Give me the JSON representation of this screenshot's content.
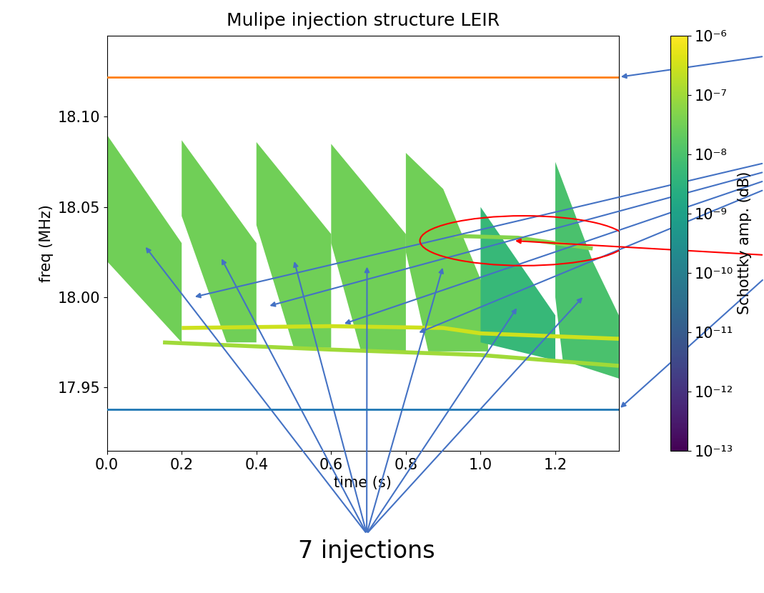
{
  "chart_data": {
    "type": "spectrogram",
    "title": "Mulipe injection structure LEIR",
    "x_label": "time (s)",
    "y_label": "freq (MHz)",
    "xlim": [
      0.0,
      1.37
    ],
    "ylim": [
      17.915,
      18.145
    ],
    "xticks": [
      {
        "value": 0.0,
        "label": "0.0"
      },
      {
        "value": 0.2,
        "label": "0.2"
      },
      {
        "value": 0.4,
        "label": "0.4"
      },
      {
        "value": 0.6,
        "label": "0.6"
      },
      {
        "value": 0.8,
        "label": "0.8"
      },
      {
        "value": 1.0,
        "label": "1.0"
      },
      {
        "value": 1.2,
        "label": "1.2"
      }
    ],
    "yticks": [
      17.95,
      {
        "value": 18.0,
        "label": "18.00"
      },
      18.05,
      {
        "value": 18.1,
        "label": "18.10"
      }
    ],
    "injections": [
      {
        "amplitude": 3e-08,
        "points": [
          [
            0.0,
            18.09
          ],
          [
            0.2,
            18.03
          ],
          [
            0.2,
            17.975
          ],
          [
            0.0,
            18.02
          ]
        ]
      },
      {
        "amplitude": 3e-08,
        "points": [
          [
            0.2,
            18.087
          ],
          [
            0.4,
            18.03
          ],
          [
            0.4,
            17.975
          ],
          [
            0.32,
            17.975
          ],
          [
            0.2,
            18.045
          ]
        ]
      },
      {
        "amplitude": 3e-08,
        "points": [
          [
            0.4,
            18.086
          ],
          [
            0.6,
            18.035
          ],
          [
            0.6,
            17.972
          ],
          [
            0.5,
            17.972
          ],
          [
            0.4,
            18.04
          ]
        ]
      },
      {
        "amplitude": 3e-08,
        "points": [
          [
            0.6,
            18.085
          ],
          [
            0.8,
            18.035
          ],
          [
            0.8,
            17.97
          ],
          [
            0.68,
            17.97
          ],
          [
            0.6,
            18.03
          ]
        ]
      },
      {
        "amplitude": 3e-08,
        "points": [
          [
            0.8,
            18.08
          ],
          [
            0.9,
            18.06
          ],
          [
            1.02,
            18.0
          ],
          [
            1.02,
            17.97
          ],
          [
            0.86,
            17.97
          ],
          [
            0.8,
            18.025
          ]
        ]
      },
      {
        "amplitude": 5e-09,
        "points": [
          [
            1.0,
            18.05
          ],
          [
            1.2,
            17.99
          ],
          [
            1.2,
            17.965
          ],
          [
            1.0,
            17.975
          ]
        ]
      },
      {
        "amplitude": 1e-08,
        "points": [
          [
            1.2,
            18.075
          ],
          [
            1.3,
            18.02
          ],
          [
            1.37,
            17.99
          ],
          [
            1.37,
            17.955
          ],
          [
            1.22,
            17.965
          ],
          [
            1.2,
            18.0
          ]
        ]
      }
    ],
    "traces": [
      {
        "amplitude": 3e-07,
        "x": [
          0.2,
          0.6,
          0.9,
          1.0,
          1.37
        ],
        "y": [
          17.983,
          17.984,
          17.983,
          17.98,
          17.977
        ]
      },
      {
        "amplitude": 1e-07,
        "x": [
          0.15,
          0.6,
          1.0,
          1.37
        ],
        "y": [
          17.975,
          17.971,
          17.968,
          17.962
        ]
      },
      {
        "amplitude": 5e-08,
        "x": [
          0.93,
          1.1,
          1.3
        ],
        "y": [
          18.034,
          18.033,
          18.027
        ]
      }
    ],
    "lines": [
      {
        "value": 18.122,
        "color": "#ff7f0e"
      },
      {
        "value": 17.938,
        "color": "#1f77b4"
      }
    ],
    "colorbar": {
      "label": "Schottky amp. (dB)",
      "range": [
        1e-13,
        1e-06
      ],
      "log": true,
      "ticks": [
        {
          "value": 1e-13,
          "label": "10⁻¹³"
        },
        {
          "value": 1e-12,
          "label": "10⁻¹²"
        },
        {
          "value": 1e-11,
          "label": "10⁻¹¹"
        },
        {
          "value": 1e-10,
          "label": "10⁻¹⁰"
        },
        {
          "value": 1e-09,
          "label": "10⁻⁹"
        },
        {
          "value": 1e-08,
          "label": "10⁻⁸"
        },
        {
          "value": 1e-07,
          "label": "10⁻⁷"
        },
        {
          "value": 1e-06,
          "label": "10⁻⁶"
        }
      ]
    },
    "annotation": "7 injections"
  }
}
